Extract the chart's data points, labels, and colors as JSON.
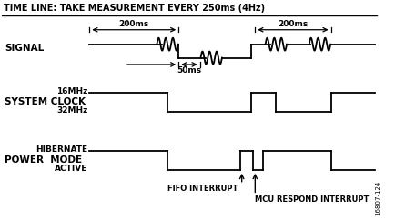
{
  "title": "TIME LINE: TAKE MEASUREMENT EVERY 250ms (4Hz)",
  "bg_color": "#ffffff",
  "line_color": "#000000",
  "signal_label": "SIGNAL",
  "clock_label": "SYSTEM CLOCK",
  "clock_freq_hi": "16MHz",
  "clock_freq_lo": "32MHz",
  "power_label": "POWER  MODE",
  "hibernate_label": "HIBERNATE",
  "active_label": "ACTIVE",
  "annotation1": "FIFO INTERRUPT",
  "annotation2": "MCU RESPOND INTERRUPT",
  "dim_200ms": "200ms",
  "dim_50ms": "50ms",
  "watermark": "16807-124",
  "figsize": [
    4.35,
    2.42
  ],
  "dpi": 100
}
